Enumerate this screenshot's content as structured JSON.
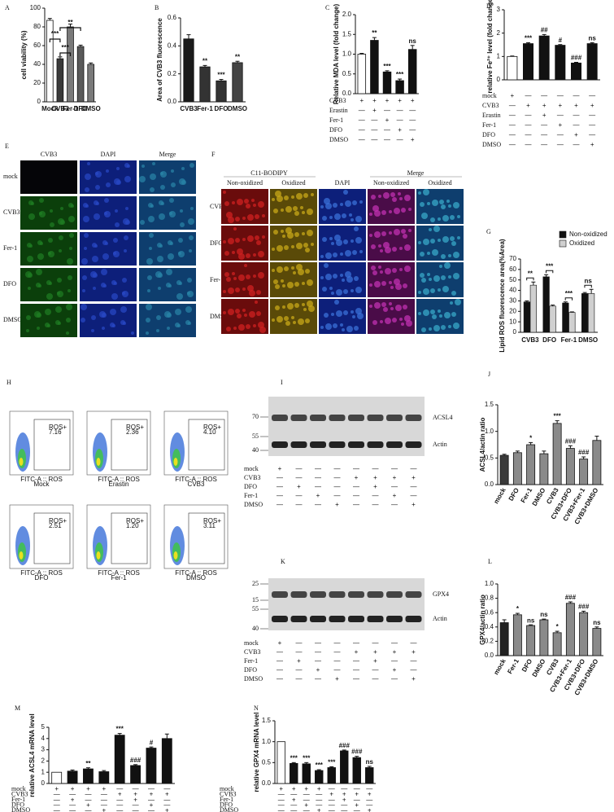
{
  "chart_data": [
    {
      "type": "bar",
      "panel": "A",
      "ylabel": "cell viability (%)",
      "categories": [
        "Mock",
        "CVB3",
        "Fer-1",
        "DFO",
        "DMSO"
      ],
      "values": [
        87,
        46,
        80,
        59,
        40
      ],
      "errors": [
        2,
        2,
        3,
        1.5,
        1.5
      ],
      "colors": [
        "#ffffff",
        "#3a3a3a",
        "#7a7a7a",
        "#5a5a5a",
        "#7a7a7a"
      ],
      "ylim": [
        0,
        100
      ],
      "yticks": [
        0,
        20,
        40,
        60,
        80,
        100
      ],
      "brackets": [
        {
          "between": [
            "Mock",
            "CVB3"
          ],
          "label": "***"
        },
        {
          "between": [
            "CVB3",
            "Fer-1"
          ],
          "label": "***"
        },
        {
          "between": [
            "CVB3",
            "DFO"
          ],
          "label": "**"
        }
      ]
    },
    {
      "type": "bar",
      "panel": "B",
      "ylabel": "Area of CVB3 fluorescence",
      "categories": [
        "CVB3",
        "Fer-1",
        "DFO",
        "DMSO"
      ],
      "values": [
        0.45,
        0.25,
        0.15,
        0.28
      ],
      "errors": [
        0.03,
        0.01,
        0.01,
        0.01
      ],
      "colors": [
        "#1a1a1a",
        "#333333",
        "#333333",
        "#444444"
      ],
      "ylim": [
        0,
        0.6
      ],
      "yticks": [
        {
          "value": 0,
          "label": "0.0"
        },
        0.2,
        0.4,
        0.6
      ],
      "annotations": [
        null,
        "**",
        "***",
        "**"
      ]
    },
    {
      "type": "bar",
      "panel": "C",
      "ylabel": "Relative MDA level (fold change)",
      "values": [
        1.0,
        1.35,
        0.55,
        0.33,
        1.12
      ],
      "errors": [
        0.02,
        0.07,
        0.03,
        0.04,
        0.1
      ],
      "colors": [
        "#ffffff",
        "#111111",
        "#111111",
        "#111111",
        "#111111"
      ],
      "ylim": [
        0,
        2
      ],
      "yticks": [
        {
          "value": 0,
          "label": "0.0"
        },
        0.5,
        {
          "value": 1,
          "label": "1.0"
        },
        1.5,
        {
          "value": 2,
          "label": "2.0"
        }
      ],
      "annotations": [
        null,
        "**",
        "***",
        "***",
        "ns"
      ],
      "conditions": [
        {
          "label": "CVB3",
          "marks": [
            "+",
            "+",
            "+",
            "+",
            "+"
          ]
        },
        {
          "label": "Erastin",
          "marks": [
            "—",
            "+",
            "—",
            "—",
            "—"
          ]
        },
        {
          "label": "Fer-1",
          "marks": [
            "—",
            "—",
            "+",
            "—",
            "—"
          ]
        },
        {
          "label": "DFO",
          "marks": [
            "—",
            "—",
            "—",
            "+",
            "—"
          ]
        },
        {
          "label": "DMSO",
          "marks": [
            "—",
            "—",
            "—",
            "—",
            "+"
          ]
        }
      ]
    },
    {
      "type": "bar",
      "panel": "D",
      "ylabel": "relative Fe²⁺ level (fold change)",
      "values": [
        1,
        1.55,
        1.88,
        1.48,
        0.72,
        1.55
      ],
      "errors": [
        0.02,
        0.04,
        0.06,
        0.03,
        0.03,
        0.04
      ],
      "colors": [
        "#ffffff",
        "#111111",
        "#111111",
        "#111111",
        "#111111",
        "#111111"
      ],
      "ylim": [
        0,
        3
      ],
      "yticks": [
        0,
        1,
        2,
        3
      ],
      "annotations": [
        null,
        "***",
        "##",
        "#",
        "###",
        "ns"
      ],
      "conditions": [
        {
          "label": "mock",
          "marks": [
            "+",
            "—",
            "—",
            "—",
            "—",
            "—"
          ]
        },
        {
          "label": "CVB3",
          "marks": [
            "—",
            "+",
            "+",
            "+",
            "+",
            "+"
          ]
        },
        {
          "label": "Erastin",
          "marks": [
            "—",
            "—",
            "+",
            "—",
            "—",
            "—"
          ]
        },
        {
          "label": "Fer-1",
          "marks": [
            "—",
            "—",
            "—",
            "+",
            "—",
            "—"
          ]
        },
        {
          "label": "DFO",
          "marks": [
            "—",
            "—",
            "—",
            "—",
            "+",
            "—"
          ]
        },
        {
          "label": "DMSO",
          "marks": [
            "—",
            "—",
            "—",
            "—",
            "—",
            "+"
          ]
        }
      ]
    },
    {
      "type": "grouped-bar",
      "panel": "G",
      "ylabel": "Lipid ROS fluorescence area(%Area)",
      "categories": [
        "CVB3",
        "DFO",
        "Fer-1",
        "DMSO"
      ],
      "series": [
        {
          "name": "Non-oxidized",
          "color": "#111111",
          "values": [
            29,
            53,
            28,
            37
          ],
          "errors": [
            1,
            2,
            1,
            1
          ]
        },
        {
          "name": "Oxidized",
          "color": "#d0d0d0",
          "values": [
            45,
            25,
            19,
            37
          ],
          "errors": [
            3,
            1,
            0.5,
            4
          ]
        }
      ],
      "ylim": [
        0,
        70
      ],
      "yticks": [
        0,
        10,
        20,
        30,
        40,
        50,
        60,
        70
      ],
      "legend": "upper right",
      "group_annotations": [
        "**",
        "***",
        "***",
        "ns"
      ]
    },
    {
      "type": "bar",
      "panel": "J",
      "ylabel": "ACSL4/actin ratio",
      "categories": [
        "mock",
        "DFO",
        "Fer-1",
        "DMSO",
        "CVB3",
        "CVB3+DFO",
        "CVB3+Fer-1",
        "CVB3+DMSO"
      ],
      "values": [
        0.55,
        0.6,
        0.75,
        0.58,
        1.15,
        0.68,
        0.48,
        0.83
      ],
      "errors": [
        0.02,
        0.03,
        0.04,
        0.05,
        0.05,
        0.05,
        0.04,
        0.08
      ],
      "colors": [
        "#3a3a3a",
        "#8a8a8a",
        "#8a8a8a",
        "#8a8a8a",
        "#8a8a8a",
        "#8a8a8a",
        "#8a8a8a",
        "#8a8a8a"
      ],
      "ylim": [
        0,
        1.5
      ],
      "yticks": [
        {
          "value": 0,
          "label": "0.0"
        },
        0.5,
        {
          "value": 1,
          "label": "1.0"
        },
        1.5
      ],
      "annotations": [
        null,
        null,
        "*",
        null,
        "***",
        "###",
        "###",
        null
      ]
    },
    {
      "type": "bar",
      "panel": "L",
      "ylabel": "GPX4/actin ratio",
      "categories": [
        "mock",
        "Fer-1",
        "DFO",
        "DMSO",
        "CVB3",
        "CVB3+Fer-1",
        "CVB3+DFO",
        "CVB3+DMSO"
      ],
      "values": [
        0.46,
        0.57,
        0.42,
        0.5,
        0.32,
        0.73,
        0.6,
        0.38
      ],
      "errors": [
        0.04,
        0.02,
        0.01,
        0.01,
        0.02,
        0.02,
        0.02,
        0.02
      ],
      "colors": [
        "#222222",
        "#8a8a8a",
        "#8a8a8a",
        "#8a8a8a",
        "#8a8a8a",
        "#8a8a8a",
        "#8a8a8a",
        "#8a8a8a"
      ],
      "ylim": [
        0,
        1
      ],
      "yticks": [
        {
          "value": 0,
          "label": "0.0"
        },
        0.2,
        0.4,
        0.6,
        0.8,
        {
          "value": 1,
          "label": "1.0"
        }
      ],
      "annotations": [
        null,
        "*",
        "ns",
        "ns",
        "*",
        "###",
        "###",
        "ns"
      ]
    },
    {
      "type": "bar",
      "panel": "M",
      "ylabel": "relative ACSL4 mRNA level",
      "values": [
        1,
        1.1,
        1.3,
        1.05,
        4.3,
        1.6,
        3.15,
        4.0
      ],
      "errors": [
        0,
        0.1,
        0.1,
        0.1,
        0.15,
        0.08,
        0.1,
        0.4
      ],
      "colors": [
        "#ffffff",
        "#111111",
        "#111111",
        "#111111",
        "#111111",
        "#111111",
        "#111111",
        "#111111"
      ],
      "ylim": [
        0,
        5
      ],
      "yticks": [
        0,
        1,
        2,
        3,
        4,
        5
      ],
      "annotations": [
        null,
        null,
        "**",
        null,
        "***",
        "###",
        "#",
        null
      ],
      "conditions": [
        {
          "label": "mock",
          "marks": [
            "+",
            "+",
            "+",
            "+",
            "—",
            "—",
            "—",
            "—"
          ]
        },
        {
          "label": "CVB3",
          "marks": [
            "—",
            "—",
            "—",
            "—",
            "+",
            "+",
            "+",
            "+"
          ]
        },
        {
          "label": "Fer-1",
          "marks": [
            "—",
            "+",
            "—",
            "—",
            "—",
            "+",
            "—",
            "—"
          ]
        },
        {
          "label": "DFO",
          "marks": [
            "—",
            "—",
            "+",
            "—",
            "—",
            "—",
            "+",
            "—"
          ]
        },
        {
          "label": "DMSO",
          "marks": [
            "—",
            "—",
            "—",
            "+",
            "—",
            "—",
            "—",
            "+"
          ]
        }
      ]
    },
    {
      "type": "bar",
      "panel": "N",
      "ylabel": "relative GPX4 mRNA level",
      "values": [
        1,
        0.48,
        0.47,
        0.31,
        0.38,
        0.78,
        0.62,
        0.38
      ],
      "errors": [
        0,
        0.02,
        0.03,
        0.02,
        0.02,
        0.02,
        0.03,
        0.03
      ],
      "colors": [
        "#ffffff",
        "#111111",
        "#111111",
        "#111111",
        "#111111",
        "#111111",
        "#111111",
        "#111111"
      ],
      "ylim": [
        0,
        1.5
      ],
      "yticks": [
        {
          "value": 0,
          "label": "0.0"
        },
        0.5,
        {
          "value": 1,
          "label": "1.0"
        },
        1.5
      ],
      "annotations": [
        null,
        "***",
        "***",
        "***",
        "***",
        "###",
        "###",
        "ns"
      ],
      "conditions": [
        {
          "label": "mock",
          "marks": [
            "+",
            "+",
            "+",
            "+",
            "—",
            "—",
            "—",
            "—"
          ]
        },
        {
          "label": "CVB3",
          "marks": [
            "—",
            "—",
            "—",
            "—",
            "+",
            "+",
            "+",
            "+"
          ]
        },
        {
          "label": "Fer-1",
          "marks": [
            "—",
            "+",
            "—",
            "—",
            "—",
            "+",
            "—",
            "—"
          ]
        },
        {
          "label": "DFO",
          "marks": [
            "—",
            "—",
            "+",
            "—",
            "—",
            "—",
            "+",
            "—"
          ]
        },
        {
          "label": "DMSO",
          "marks": [
            "—",
            "—",
            "—",
            "+",
            "—",
            "—",
            "—",
            "+"
          ]
        }
      ]
    }
  ],
  "image_panels": {
    "E": {
      "panel": "E",
      "columns": [
        "CVB3",
        "DAPI",
        "Merge"
      ],
      "rows": [
        "mock",
        "CVB3",
        "Fer-1",
        "DFO",
        "DMSO"
      ]
    },
    "F": {
      "panel": "F",
      "groups": [
        "C11-BODIPY",
        "Merge"
      ],
      "columns": [
        "Non-oxidized",
        "Oxidized",
        "DAPI",
        "Non-oxidized",
        "Oxidized"
      ],
      "rows": [
        "CVB3",
        "DFO",
        "Fer-1",
        "DMSO"
      ]
    },
    "H": {
      "panel": "H",
      "x_label": "FITC-A :: ROS",
      "gate": "ROS+",
      "plots": [
        {
          "caption": "Mock",
          "percent": "7.16"
        },
        {
          "caption": "Erastin",
          "percent": "2.36"
        },
        {
          "caption": "CVB3",
          "percent": "4.10"
        },
        {
          "caption": "DFO",
          "percent": "2.51"
        },
        {
          "caption": "Fer-1",
          "percent": "1.20"
        },
        {
          "caption": "DMSO",
          "percent": "3.11"
        }
      ]
    },
    "I": {
      "panel": "I",
      "markers": [
        "70",
        "55",
        "40"
      ],
      "bands": [
        "ACSL4",
        "Actin"
      ],
      "conditions": [
        {
          "label": "mock",
          "marks": [
            "+",
            "—",
            "—",
            "—",
            "—",
            "—",
            "—",
            "—"
          ]
        },
        {
          "label": "CVB3",
          "marks": [
            "—",
            "—",
            "—",
            "—",
            "+",
            "+",
            "+",
            "+"
          ]
        },
        {
          "label": "DFO",
          "marks": [
            "—",
            "+",
            "—",
            "—",
            "—",
            "+",
            "—",
            "—"
          ]
        },
        {
          "label": "Fer-1",
          "marks": [
            "—",
            "—",
            "+",
            "—",
            "—",
            "—",
            "+",
            "—"
          ]
        },
        {
          "label": "DMSO",
          "marks": [
            "—",
            "—",
            "—",
            "+",
            "—",
            "—",
            "—",
            "+"
          ]
        }
      ]
    },
    "K": {
      "panel": "K",
      "markers": [
        "25",
        "15",
        "55",
        "40"
      ],
      "bands": [
        "GPX4",
        "Actin"
      ],
      "conditions": [
        {
          "label": "mock",
          "marks": [
            "+",
            "—",
            "—",
            "—",
            "—",
            "—",
            "—",
            "—"
          ]
        },
        {
          "label": "CVB3",
          "marks": [
            "—",
            "—",
            "—",
            "—",
            "+",
            "+",
            "+",
            "+"
          ]
        },
        {
          "label": "Fer-1",
          "marks": [
            "—",
            "+",
            "—",
            "—",
            "—",
            "+",
            "—",
            "—"
          ]
        },
        {
          "label": "DFO",
          "marks": [
            "—",
            "—",
            "+",
            "—",
            "—",
            "—",
            "+",
            "—"
          ]
        },
        {
          "label": "DMSO",
          "marks": [
            "—",
            "—",
            "—",
            "+",
            "—",
            "—",
            "—",
            "+"
          ]
        }
      ]
    }
  }
}
